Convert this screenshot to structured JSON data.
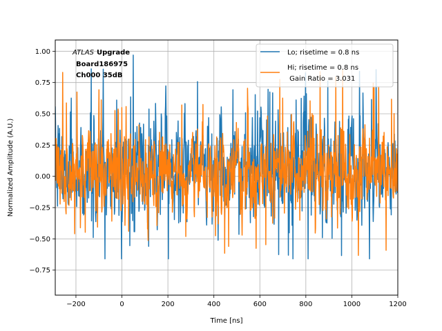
{
  "chart_data": {
    "type": "line",
    "title": "",
    "xlabel": "Time [ns]",
    "ylabel": "Normalized Amplitude (A.U.)",
    "xlim": [
      -290,
      1200
    ],
    "ylim": [
      -0.95,
      1.09
    ],
    "grid": true,
    "xticks": [
      -200,
      0,
      200,
      400,
      600,
      800,
      1000,
      1200
    ],
    "xtick_labels": [
      "−200",
      "0",
      "200",
      "400",
      "600",
      "800",
      "1000",
      "1200"
    ],
    "yticks": [
      -0.75,
      -0.5,
      -0.25,
      0.0,
      0.25,
      0.5,
      0.75,
      1.0
    ],
    "ytick_labels": [
      "−0.75",
      "−0.50",
      "−0.25",
      "0.00",
      "0.25",
      "0.50",
      "0.75",
      "1.00"
    ],
    "annotation": {
      "italic_part": "ATLAS",
      "bold_part": "Upgrade",
      "line2": "Board186975",
      "line3": "Ch000 35dB"
    },
    "legend_position": "top-right",
    "series": [
      {
        "name": "Lo; risetime = 0.8 ns",
        "color": "#1f77b4",
        "x_start": -290,
        "x_end": 1200,
        "n_points": 1200,
        "baseline": 0.05,
        "typical_max": 0.93,
        "typical_min": -0.63
      },
      {
        "name": "Hi; risetime = 0.8 ns",
        "name_line2": " Gain Ratio = 3.031",
        "color": "#ff7f0e",
        "x_start": -290,
        "x_end": 1200,
        "n_points": 1200,
        "baseline": 0.05,
        "typical_max": 0.77,
        "typical_min": -0.63
      }
    ]
  }
}
